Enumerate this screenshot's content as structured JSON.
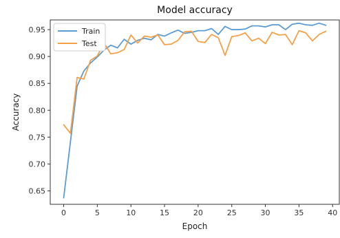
{
  "chart_data": {
    "type": "line",
    "title": "Model accuracy",
    "xlabel": "Epoch",
    "ylabel": "Accuracy",
    "xlim": [
      -2,
      41
    ],
    "ylim": [
      0.625,
      0.968
    ],
    "xticks": [
      0,
      5,
      10,
      15,
      20,
      25,
      30,
      35,
      40
    ],
    "xtick_labels": [
      "0",
      "5",
      "10",
      "15",
      "20",
      "25",
      "30",
      "35",
      "40"
    ],
    "yticks": [
      0.65,
      0.7,
      0.75,
      0.8,
      0.85,
      0.9,
      0.95
    ],
    "ytick_labels": [
      "0.65",
      "0.70",
      "0.75",
      "0.80",
      "0.85",
      "0.90",
      "0.95"
    ],
    "grid": false,
    "legend": {
      "position": "top-left"
    },
    "x": [
      0,
      1,
      2,
      3,
      4,
      5,
      6,
      7,
      8,
      9,
      10,
      11,
      12,
      13,
      14,
      15,
      16,
      17,
      18,
      19,
      20,
      21,
      22,
      23,
      24,
      25,
      26,
      27,
      28,
      29,
      30,
      31,
      32,
      33,
      34,
      35,
      36,
      37,
      38,
      39
    ],
    "series": [
      {
        "name": "Train",
        "color": "#5a9bd4",
        "values": [
          0.637,
          0.741,
          0.845,
          0.873,
          0.888,
          0.899,
          0.912,
          0.921,
          0.916,
          0.932,
          0.923,
          0.93,
          0.934,
          0.931,
          0.941,
          0.938,
          0.944,
          0.949,
          0.943,
          0.945,
          0.948,
          0.948,
          0.952,
          0.941,
          0.956,
          0.95,
          0.95,
          0.951,
          0.957,
          0.957,
          0.955,
          0.959,
          0.959,
          0.95,
          0.96,
          0.962,
          0.959,
          0.958,
          0.962,
          0.958
        ]
      },
      {
        "name": "Test",
        "color": "#f5a045",
        "values": [
          0.773,
          0.757,
          0.861,
          0.858,
          0.893,
          0.901,
          0.925,
          0.905,
          0.907,
          0.913,
          0.94,
          0.925,
          0.938,
          0.936,
          0.94,
          0.922,
          0.923,
          0.93,
          0.946,
          0.947,
          0.928,
          0.926,
          0.941,
          0.935,
          0.902,
          0.937,
          0.939,
          0.944,
          0.929,
          0.934,
          0.924,
          0.945,
          0.94,
          0.941,
          0.922,
          0.948,
          0.944,
          0.929,
          0.941,
          0.947
        ]
      }
    ]
  }
}
